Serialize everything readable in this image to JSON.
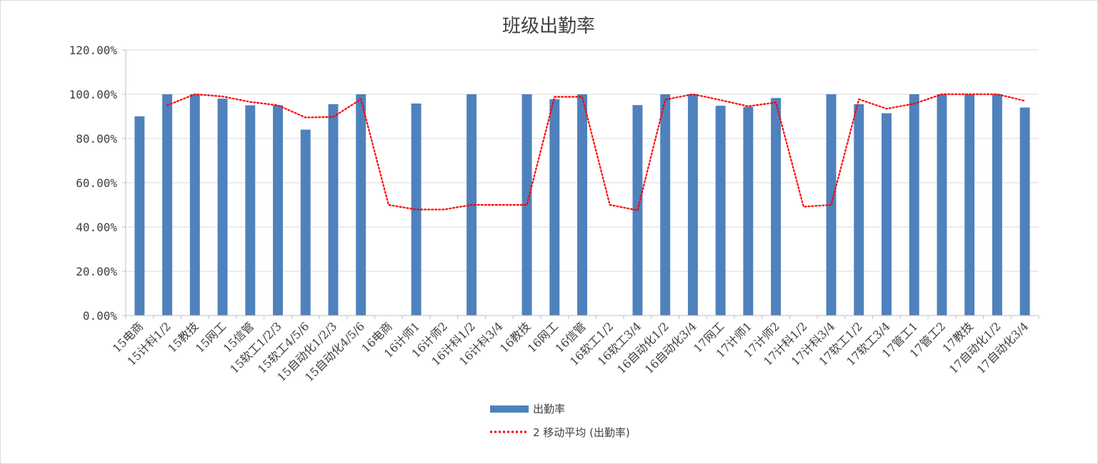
{
  "chart_data": {
    "type": "bar",
    "title": "班级出勤率",
    "categories": [
      "15电商",
      "15计科1/2",
      "15教技",
      "15网工",
      "15信管",
      "15软工1/2/3",
      "15软工4/5/6",
      "15自动化1/2/3",
      "15自动化4/5/6",
      "16电商",
      "16计师1",
      "16计师2",
      "16计科1/2",
      "16计科3/4",
      "16教技",
      "16网工",
      "16信管",
      "16软工1/2",
      "16软工3/4",
      "16自动化1/2",
      "16自动化3/4",
      "17网工",
      "17计师1",
      "17计师2",
      "17计科1/2",
      "17计科3/4",
      "17软工1/2",
      "17软工3/4",
      "17管工1",
      "17管工2",
      "17教技",
      "17自动化1/2",
      "17自动化3/4"
    ],
    "series": [
      {
        "name": "出勤率",
        "type": "bar",
        "color": "#4f81bd",
        "values": [
          0.9,
          1.0,
          1.0,
          0.98,
          0.95,
          0.95,
          0.84,
          0.955,
          1.0,
          0,
          0.958,
          0,
          1.0,
          0,
          1.0,
          0.977,
          1.0,
          0,
          0.951,
          1.0,
          1.0,
          0.948,
          0.943,
          0.983,
          0,
          1.0,
          0.955,
          0.914,
          1.0,
          1.0,
          1.0,
          1.0,
          0.94
        ]
      },
      {
        "name": "2 移动平均 (出勤率)",
        "type": "line",
        "style": "dotted",
        "color": "#ff0000",
        "values": [
          null,
          0.95,
          1.0,
          0.99,
          0.965,
          0.95,
          0.895,
          0.8975,
          0.9775,
          0.5,
          0.479,
          0.479,
          0.5,
          0.5,
          0.5,
          0.9885,
          0.9885,
          0.5,
          0.4755,
          0.9755,
          1.0,
          0.974,
          0.9455,
          0.963,
          0.4915,
          0.5,
          0.9775,
          0.9345,
          0.957,
          1.0,
          1.0,
          1.0,
          0.97
        ]
      }
    ],
    "ylim": [
      0,
      1.2
    ],
    "yticks": [
      0,
      0.2,
      0.4,
      0.6,
      0.8,
      1.0,
      1.2
    ],
    "ytick_labels": [
      "0.00%",
      "20.00%",
      "40.00%",
      "60.00%",
      "80.00%",
      "100.00%",
      "120.00%"
    ],
    "grid": true,
    "legend_position": "bottom"
  }
}
